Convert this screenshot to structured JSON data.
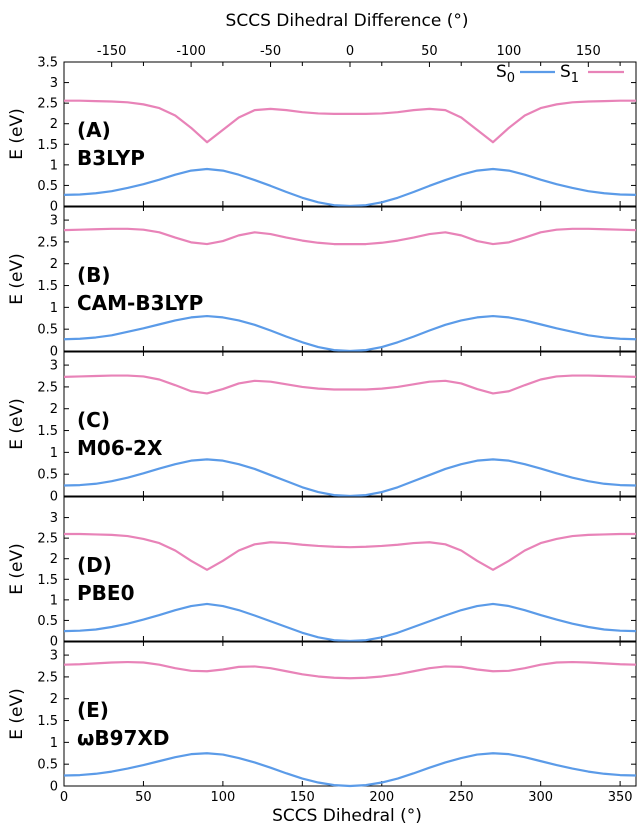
{
  "chart_data": {
    "type": "line",
    "xlabel": "SCCS Dihedral (°)",
    "x2label": "SCCS Dihedral Difference (°)",
    "ylabel": "E (eV)",
    "xlim": [
      0,
      360
    ],
    "x2lim": [
      -180,
      180
    ],
    "x_ticks": [
      0,
      50,
      100,
      150,
      200,
      250,
      300,
      350
    ],
    "x2_ticks": [
      -150,
      -100,
      -50,
      0,
      50,
      100,
      150
    ],
    "colors": {
      "S0": "#5b9be8",
      "S1": "#e883b8"
    },
    "legend": [
      {
        "key": "S0",
        "label": "S",
        "sub": "0"
      },
      {
        "key": "S1",
        "label": "S",
        "sub": "1"
      }
    ],
    "legend_position": "top-right",
    "x": [
      0,
      10,
      20,
      30,
      40,
      50,
      60,
      70,
      80,
      90,
      100,
      110,
      120,
      130,
      140,
      150,
      160,
      170,
      180,
      190,
      200,
      210,
      220,
      230,
      240,
      250,
      260,
      270,
      280,
      290,
      300,
      310,
      320,
      330,
      340,
      350,
      360
    ],
    "panels": [
      {
        "label": "(A)",
        "method": "B3LYP",
        "ylim": [
          0,
          3.5
        ],
        "y_ticks": [
          "0",
          "0.5",
          "1",
          "1.5",
          "2",
          "2.5",
          "3",
          "3.5"
        ],
        "series": [
          {
            "key": "S0",
            "values": [
              0.27,
              0.28,
              0.31,
              0.36,
              0.44,
              0.53,
              0.64,
              0.76,
              0.86,
              0.9,
              0.86,
              0.76,
              0.63,
              0.49,
              0.34,
              0.2,
              0.09,
              0.02,
              0.0,
              0.02,
              0.09,
              0.2,
              0.34,
              0.49,
              0.63,
              0.76,
              0.86,
              0.9,
              0.86,
              0.76,
              0.64,
              0.53,
              0.44,
              0.36,
              0.31,
              0.28,
              0.27
            ]
          },
          {
            "key": "S1",
            "values": [
              2.56,
              2.56,
              2.55,
              2.54,
              2.52,
              2.47,
              2.38,
              2.2,
              1.9,
              1.55,
              1.85,
              2.15,
              2.33,
              2.36,
              2.33,
              2.28,
              2.25,
              2.24,
              2.24,
              2.24,
              2.25,
              2.28,
              2.33,
              2.36,
              2.33,
              2.15,
              1.85,
              1.55,
              1.9,
              2.2,
              2.38,
              2.47,
              2.52,
              2.54,
              2.55,
              2.56,
              2.56
            ]
          }
        ]
      },
      {
        "label": "(B)",
        "method": "CAM-B3LYP",
        "ylim": [
          0,
          3.3
        ],
        "y_ticks": [
          "0",
          "0.5",
          "1",
          "1.5",
          "2",
          "2.5",
          "3"
        ],
        "series": [
          {
            "key": "S0",
            "values": [
              0.27,
              0.28,
              0.31,
              0.36,
              0.44,
              0.52,
              0.61,
              0.7,
              0.77,
              0.8,
              0.77,
              0.7,
              0.6,
              0.47,
              0.33,
              0.2,
              0.09,
              0.02,
              0.0,
              0.02,
              0.09,
              0.2,
              0.33,
              0.47,
              0.6,
              0.7,
              0.77,
              0.8,
              0.77,
              0.7,
              0.61,
              0.52,
              0.44,
              0.36,
              0.31,
              0.28,
              0.27
            ]
          },
          {
            "key": "S1",
            "values": [
              2.77,
              2.78,
              2.79,
              2.8,
              2.8,
              2.78,
              2.72,
              2.6,
              2.49,
              2.45,
              2.52,
              2.65,
              2.72,
              2.68,
              2.6,
              2.53,
              2.48,
              2.45,
              2.45,
              2.45,
              2.48,
              2.53,
              2.6,
              2.68,
              2.72,
              2.65,
              2.52,
              2.45,
              2.49,
              2.6,
              2.72,
              2.78,
              2.8,
              2.8,
              2.79,
              2.78,
              2.77
            ]
          }
        ]
      },
      {
        "label": "(C)",
        "method": "M06-2X",
        "ylim": [
          0,
          3.3
        ],
        "y_ticks": [
          "0",
          "0.5",
          "1",
          "1.5",
          "2",
          "2.5",
          "3"
        ],
        "series": [
          {
            "key": "S0",
            "values": [
              0.24,
              0.25,
              0.28,
              0.34,
              0.42,
              0.52,
              0.63,
              0.73,
              0.81,
              0.84,
              0.81,
              0.73,
              0.62,
              0.48,
              0.34,
              0.2,
              0.09,
              0.02,
              0.0,
              0.02,
              0.09,
              0.2,
              0.34,
              0.48,
              0.62,
              0.73,
              0.81,
              0.84,
              0.81,
              0.73,
              0.63,
              0.52,
              0.42,
              0.34,
              0.28,
              0.25,
              0.24
            ]
          },
          {
            "key": "S1",
            "values": [
              2.73,
              2.74,
              2.75,
              2.76,
              2.76,
              2.74,
              2.67,
              2.54,
              2.4,
              2.35,
              2.45,
              2.58,
              2.64,
              2.62,
              2.56,
              2.5,
              2.46,
              2.44,
              2.44,
              2.44,
              2.46,
              2.5,
              2.56,
              2.62,
              2.64,
              2.58,
              2.45,
              2.35,
              2.4,
              2.54,
              2.67,
              2.74,
              2.76,
              2.76,
              2.75,
              2.74,
              2.73
            ]
          }
        ]
      },
      {
        "label": "(D)",
        "method": "PBE0",
        "ylim": [
          0,
          3.5
        ],
        "y_ticks": [
          "0",
          "0.5",
          "1",
          "1.5",
          "2",
          "2.5",
          "3"
        ],
        "series": [
          {
            "key": "S0",
            "values": [
              0.24,
              0.25,
              0.28,
              0.34,
              0.42,
              0.52,
              0.63,
              0.75,
              0.85,
              0.9,
              0.85,
              0.75,
              0.62,
              0.48,
              0.34,
              0.2,
              0.09,
              0.02,
              0.0,
              0.02,
              0.09,
              0.2,
              0.34,
              0.48,
              0.62,
              0.75,
              0.85,
              0.9,
              0.85,
              0.75,
              0.63,
              0.52,
              0.42,
              0.34,
              0.28,
              0.25,
              0.24
            ]
          },
          {
            "key": "S1",
            "values": [
              2.6,
              2.6,
              2.59,
              2.58,
              2.55,
              2.48,
              2.38,
              2.2,
              1.95,
              1.73,
              1.95,
              2.2,
              2.35,
              2.4,
              2.38,
              2.34,
              2.31,
              2.29,
              2.28,
              2.29,
              2.31,
              2.34,
              2.38,
              2.4,
              2.35,
              2.2,
              1.95,
              1.73,
              1.95,
              2.2,
              2.38,
              2.48,
              2.55,
              2.58,
              2.59,
              2.6,
              2.6
            ]
          }
        ]
      },
      {
        "label": "(E)",
        "method": "ωB97XD",
        "ylim": [
          0,
          3.3
        ],
        "y_ticks": [
          "0",
          "0.5",
          "1",
          "1.5",
          "2",
          "2.5",
          "3"
        ],
        "series": [
          {
            "key": "S0",
            "values": [
              0.24,
              0.25,
              0.28,
              0.33,
              0.4,
              0.48,
              0.57,
              0.66,
              0.73,
              0.75,
              0.72,
              0.64,
              0.54,
              0.42,
              0.29,
              0.17,
              0.08,
              0.02,
              0.0,
              0.02,
              0.08,
              0.17,
              0.29,
              0.42,
              0.54,
              0.64,
              0.72,
              0.75,
              0.73,
              0.66,
              0.57,
              0.48,
              0.4,
              0.33,
              0.28,
              0.25,
              0.24
            ]
          },
          {
            "key": "S1",
            "values": [
              2.78,
              2.79,
              2.81,
              2.83,
              2.84,
              2.83,
              2.78,
              2.7,
              2.64,
              2.63,
              2.67,
              2.73,
              2.74,
              2.7,
              2.63,
              2.56,
              2.51,
              2.48,
              2.47,
              2.48,
              2.51,
              2.56,
              2.63,
              2.7,
              2.74,
              2.73,
              2.67,
              2.63,
              2.64,
              2.7,
              2.78,
              2.83,
              2.84,
              2.83,
              2.81,
              2.79,
              2.78
            ]
          }
        ]
      }
    ]
  }
}
